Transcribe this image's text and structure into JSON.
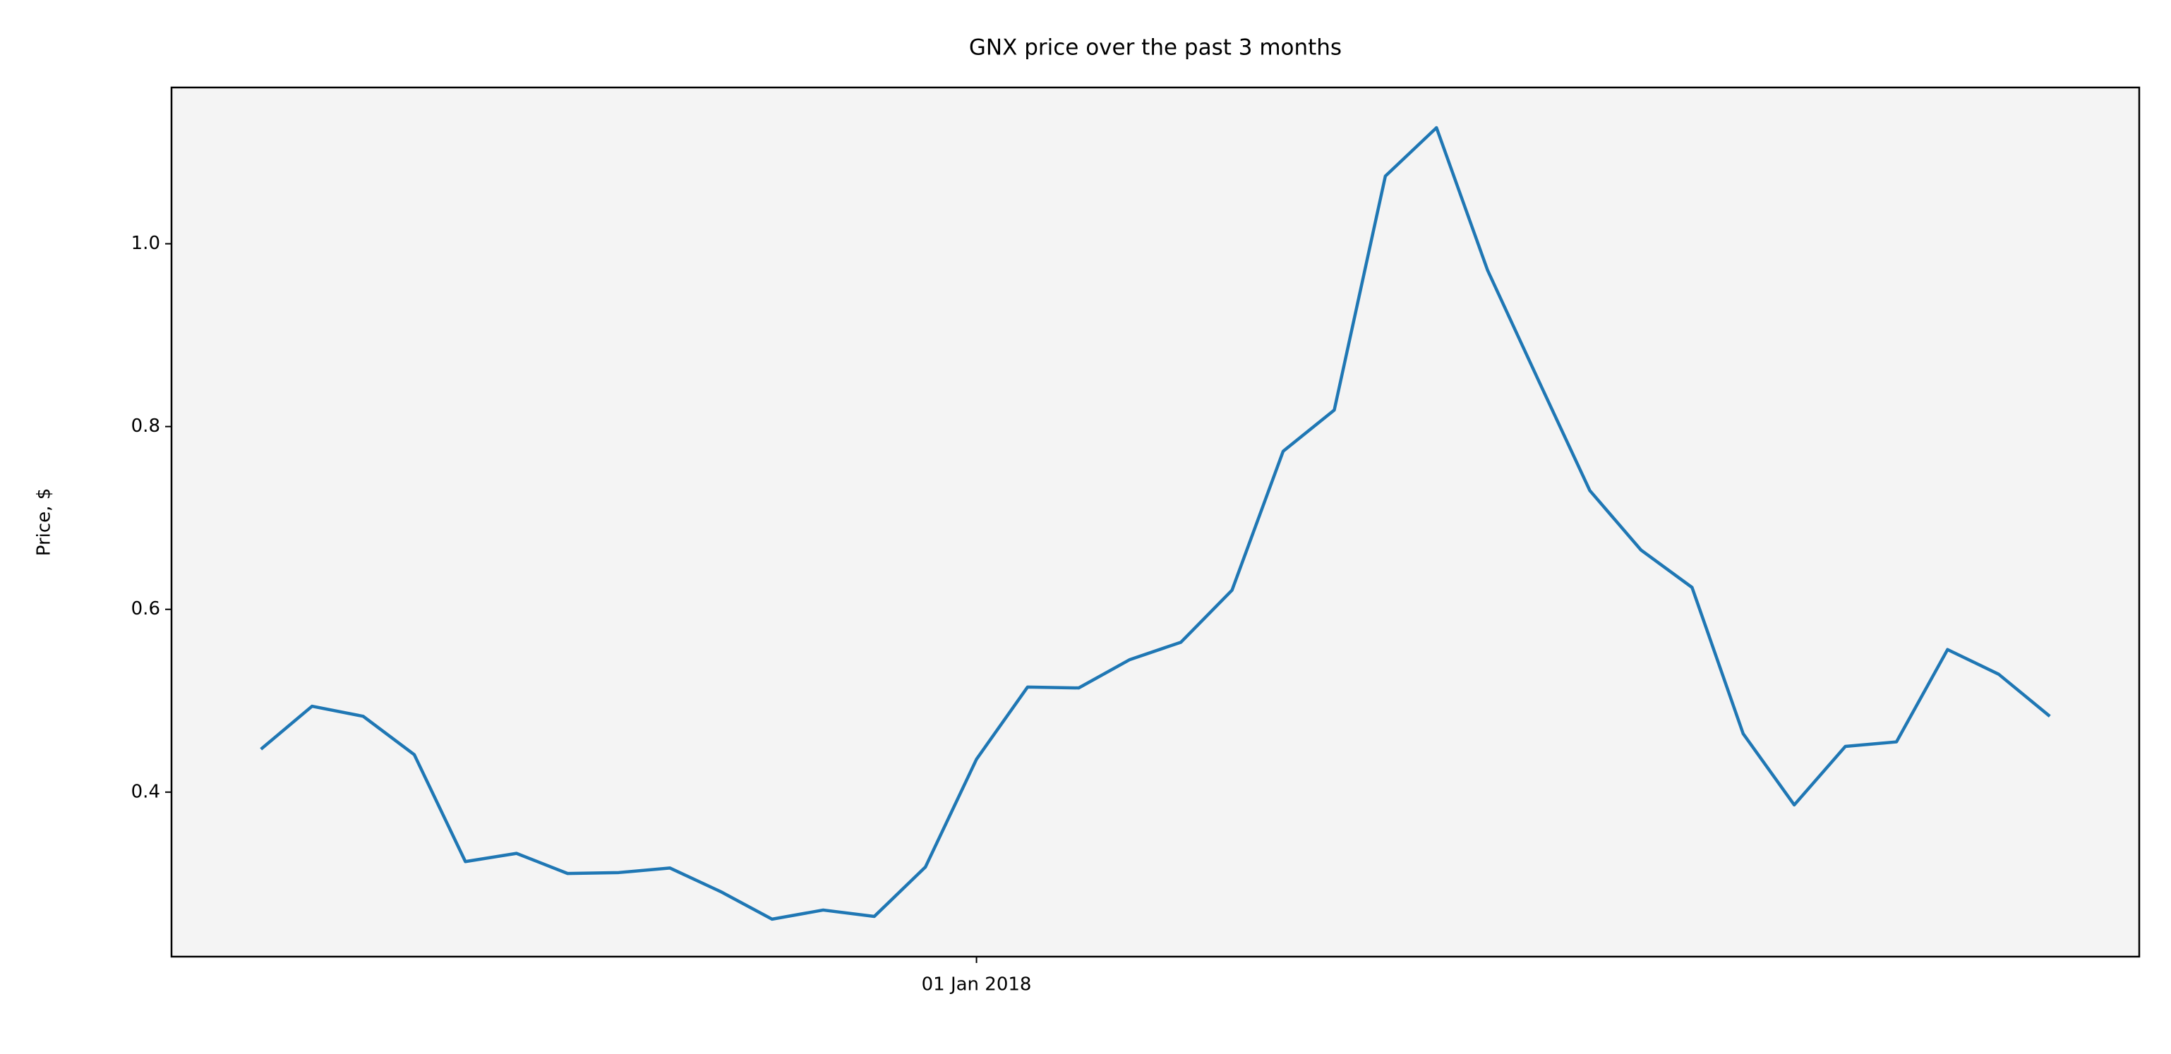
{
  "chart_data": {
    "type": "line",
    "title": "GNX price over the past 3 months",
    "ylabel": "Price, $",
    "categories": [
      null,
      null,
      null,
      null,
      null,
      null,
      null,
      null,
      null,
      null,
      null,
      null,
      null,
      null,
      "01 Jan 2018",
      null,
      null,
      null,
      null,
      null,
      null,
      null,
      null,
      null,
      null,
      null,
      null,
      null,
      null,
      null,
      null,
      null,
      null,
      null,
      null,
      null
    ],
    "values": [
      0.447,
      0.494,
      0.483,
      0.441,
      0.324,
      0.333,
      0.311,
      0.312,
      0.317,
      0.291,
      0.261,
      0.271,
      0.264,
      0.318,
      0.436,
      0.515,
      0.514,
      0.545,
      0.564,
      0.621,
      0.773,
      0.818,
      1.074,
      1.127,
      0.971,
      0.85,
      0.73,
      0.665,
      0.624,
      0.464,
      0.386,
      0.45,
      0.455,
      0.556,
      0.529,
      0.483
    ],
    "color": "#1f77b4",
    "background": "#f4f4f4",
    "ylim": [
      0.22,
      1.171
    ],
    "yticks": [
      0.4,
      0.6,
      0.8,
      {
        "value": 1,
        "label": "1.0"
      }
    ],
    "grid": false
  }
}
